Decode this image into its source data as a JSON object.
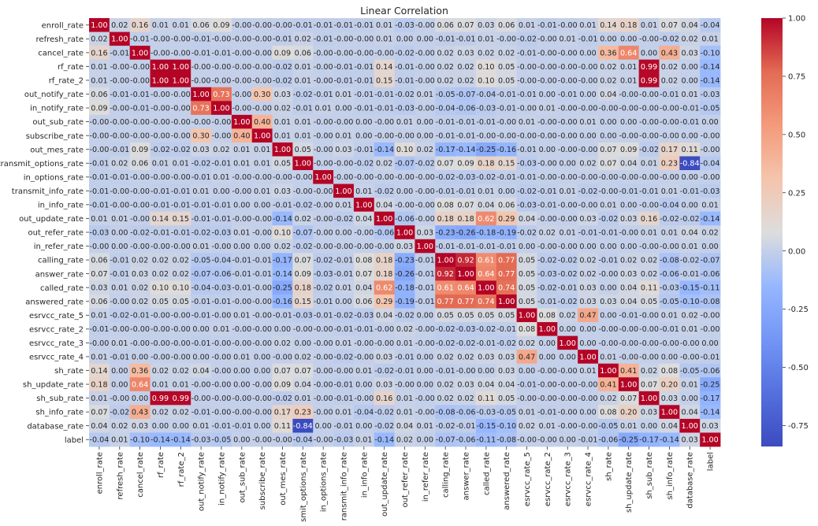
{
  "chart_data": {
    "type": "heatmap",
    "title": "Linear Correlation",
    "xlabel": "",
    "ylabel": "",
    "colormap": "coolwarm",
    "vmin": -0.84,
    "vmax": 1.0,
    "colorbar_ticks": [
      1.0,
      0.75,
      0.5,
      0.25,
      0.0,
      -0.25,
      -0.5,
      -0.75
    ],
    "colorbar_tick_labels": [
      "1.00",
      "0.75",
      "0.50",
      "0.25",
      "0.00",
      "-0.25",
      "-0.50",
      "-0.75"
    ],
    "labels": [
      "enroll_rate",
      "refresh_rate",
      "cancel_rate",
      "rf_rate",
      "rf_rate_2",
      "out_notify_rate",
      "in_notify_rate",
      "out_sub_rate",
      "subscribe_rate",
      "out_mes_rate",
      "transmit_options_rate",
      "in_options_rate",
      "transmit_info_rate",
      "in_info_rate",
      "out_update_rate",
      "out_refer_rate",
      "in_refer_rate",
      "calling_rate",
      "answer_rate",
      "called_rate",
      "answered_rate",
      "esrvcc_rate_5",
      "esrvcc_rate_2",
      "esrvcc_rate_3",
      "esrvcc_rate_4",
      "sh_rate",
      "sh_update_rate",
      "sh_sub_rate",
      "sh_info_rate",
      "database_rate",
      "label"
    ],
    "x_tick_labels": [
      "enroll_rate",
      "refresh_rate",
      "cancel_rate",
      "rf_rate",
      "rf_rate_2",
      "out_notify_rate",
      "in_notify_rate",
      "out_sub_rate",
      "subscribe_rate",
      "out_mes_rate",
      "nsmit_options_rate",
      "in_options_rate",
      "ransmit_info_rate",
      "in_info_rate",
      "out_update_rate",
      "out_refer_rate",
      "in_refer_rate",
      "calling_rate",
      "answer_rate",
      "called_rate",
      "answered_rate",
      "esrvcc_rate_5",
      "esrvcc_rate_2",
      "esrvcc_rate_3",
      "esrvcc_rate_4",
      "sh_rate",
      "sh_update_rate",
      "sh_sub_rate",
      "sh_info_rate",
      "database_rate",
      "label"
    ],
    "y_tick_labels": [
      "enroll_rate",
      "refresh_rate",
      "cancel_rate",
      "rf_rate",
      "rf_rate_2",
      "out_notify_rate",
      "in_notify_rate",
      "out_sub_rate",
      "subscribe_rate",
      "out_mes_rate",
      "transmit_options_rate",
      "in_options_rate",
      "transmit_info_rate",
      "in_info_rate",
      "out_update_rate",
      "out_refer_rate",
      "in_refer_rate",
      "calling_rate",
      "answer_rate",
      "called_rate",
      "answered_rate",
      "esrvcc_rate_5",
      "esrvcc_rate_2",
      "esrvcc_rate_3",
      "esrvcc_rate_4",
      "sh_rate",
      "sh_update_rate",
      "sh_sub_rate",
      "sh_info_rate",
      "database_rate",
      "label"
    ],
    "matrix": [
      [
        "1.00",
        "0.02",
        "0.16",
        "0.01",
        "0.01",
        "0.06",
        "0.09",
        "-0.00",
        "-0.00",
        "-0.00",
        "-0.01",
        "-0.01",
        "-0.01",
        "-0.01",
        "0.01",
        "-0.03",
        "-0.00",
        "0.06",
        "0.07",
        "0.03",
        "0.06",
        "0.01",
        "-0.01",
        "-0.00",
        "0.01",
        "0.14",
        "0.18",
        "0.01",
        "0.07",
        "0.04",
        "-0.04"
      ],
      [
        "0.02",
        "1.00",
        "-0.01",
        "-0.00",
        "-0.00",
        "-0.01",
        "-0.00",
        "-0.00",
        "-0.00",
        "-0.01",
        "0.02",
        "-0.01",
        "-0.00",
        "-0.00",
        "0.01",
        "0.00",
        "0.00",
        "-0.01",
        "-0.01",
        "0.01",
        "-0.00",
        "-0.02",
        "-0.00",
        "0.01",
        "-0.01",
        "0.00",
        "0.00",
        "-0.00",
        "-0.02",
        "0.02",
        "0.01"
      ],
      [
        "0.16",
        "-0.01",
        "1.00",
        "-0.00",
        "-0.00",
        "-0.01",
        "-0.01",
        "-0.00",
        "-0.00",
        "0.09",
        "0.06",
        "-0.00",
        "-0.00",
        "-0.00",
        "-0.00",
        "-0.02",
        "-0.00",
        "0.02",
        "0.03",
        "0.02",
        "0.02",
        "-0.01",
        "-0.00",
        "-0.00",
        "0.00",
        "0.36",
        "0.64",
        "0.00",
        "0.43",
        "0.03",
        "-0.10"
      ],
      [
        "0.01",
        "-0.00",
        "-0.00",
        "1.00",
        "1.00",
        "-0.00",
        "-0.00",
        "-0.00",
        "-0.00",
        "-0.02",
        "0.01",
        "-0.00",
        "-0.01",
        "-0.01",
        "0.14",
        "-0.01",
        "-0.00",
        "0.02",
        "0.02",
        "0.10",
        "0.05",
        "-0.00",
        "-0.00",
        "-0.00",
        "-0.00",
        "0.02",
        "0.01",
        "0.99",
        "0.02",
        "0.00",
        "-0.14"
      ],
      [
        "0.01",
        "-0.00",
        "-0.00",
        "1.00",
        "1.00",
        "-0.00",
        "-0.00",
        "-0.00",
        "-0.00",
        "-0.02",
        "0.01",
        "-0.00",
        "-0.01",
        "-0.01",
        "0.15",
        "-0.01",
        "-0.00",
        "0.02",
        "0.02",
        "0.10",
        "0.05",
        "-0.00",
        "-0.00",
        "-0.00",
        "-0.00",
        "0.02",
        "0.01",
        "0.99",
        "0.02",
        "0.00",
        "-0.14"
      ],
      [
        "0.06",
        "-0.01",
        "-0.01",
        "-0.00",
        "-0.00",
        "1.00",
        "0.73",
        "-0.00",
        "0.30",
        "0.03",
        "-0.02",
        "-0.01",
        "0.01",
        "-0.01",
        "-0.01",
        "-0.02",
        "0.01",
        "-0.05",
        "-0.07",
        "-0.04",
        "-0.01",
        "-0.01",
        "0.00",
        "-0.01",
        "0.00",
        "0.04",
        "-0.00",
        "-0.00",
        "-0.01",
        "0.01",
        "-0.03"
      ],
      [
        "0.09",
        "-0.00",
        "-0.01",
        "-0.00",
        "-0.00",
        "0.73",
        "1.00",
        "-0.00",
        "-0.00",
        "0.02",
        "-0.01",
        "0.01",
        "0.00",
        "-0.01",
        "-0.01",
        "-0.03",
        "-0.00",
        "-0.04",
        "-0.06",
        "-0.03",
        "-0.01",
        "-0.00",
        "0.01",
        "-0.00",
        "-0.00",
        "-0.00",
        "-0.00",
        "-0.00",
        "-0.00",
        "-0.01",
        "-0.05"
      ],
      [
        "-0.00",
        "-0.00",
        "-0.00",
        "-0.00",
        "-0.00",
        "-0.00",
        "-0.00",
        "1.00",
        "0.40",
        "0.01",
        "0.01",
        "-0.00",
        "-0.00",
        "0.00",
        "-0.00",
        "0.01",
        "0.00",
        "-0.01",
        "-0.01",
        "-0.01",
        "-0.00",
        "0.01",
        "-0.00",
        "-0.00",
        "0.01",
        "0.00",
        "0.00",
        "-0.00",
        "-0.00",
        "-0.01",
        "0.00"
      ],
      [
        "-0.00",
        "-0.00",
        "-0.00",
        "-0.00",
        "-0.00",
        "0.30",
        "-0.00",
        "0.40",
        "1.00",
        "0.01",
        "0.01",
        "-0.00",
        "0.01",
        "0.00",
        "-0.00",
        "-0.00",
        "0.00",
        "-0.01",
        "-0.01",
        "-0.00",
        "-0.00",
        "-0.00",
        "-0.00",
        "-0.00",
        "0.00",
        "0.00",
        "-0.00",
        "-0.00",
        "-0.00",
        "0.00",
        "-0.00"
      ],
      [
        "-0.00",
        "-0.01",
        "0.09",
        "-0.02",
        "-0.02",
        "0.03",
        "0.02",
        "0.01",
        "0.01",
        "1.00",
        "0.05",
        "-0.00",
        "0.03",
        "-0.01",
        "-0.14",
        "0.10",
        "0.02",
        "-0.17",
        "-0.14",
        "-0.25",
        "-0.16",
        "-0.01",
        "0.00",
        "-0.00",
        "-0.00",
        "0.07",
        "0.09",
        "-0.02",
        "0.17",
        "0.11",
        "-0.00"
      ],
      [
        "-0.01",
        "0.02",
        "0.06",
        "0.01",
        "0.01",
        "-0.02",
        "-0.01",
        "0.01",
        "0.01",
        "0.05",
        "1.00",
        "-0.00",
        "-0.00",
        "-0.02",
        "0.02",
        "-0.07",
        "-0.02",
        "0.07",
        "0.09",
        "0.18",
        "0.15",
        "-0.03",
        "-0.00",
        "0.00",
        "0.02",
        "0.07",
        "0.04",
        "0.01",
        "0.23",
        "-0.84",
        "-0.04"
      ],
      [
        "-0.01",
        "-0.01",
        "-0.00",
        "-0.00",
        "-0.00",
        "-0.01",
        "0.01",
        "-0.00",
        "-0.00",
        "-0.00",
        "-0.00",
        "1.00",
        "-0.00",
        "-0.00",
        "-0.00",
        "-0.00",
        "-0.00",
        "-0.02",
        "-0.03",
        "-0.02",
        "-0.01",
        "-0.01",
        "-0.00",
        "-0.00",
        "-0.00",
        "-0.00",
        "-0.00",
        "-0.00",
        "-0.00",
        "0.00",
        "-0.00"
      ],
      [
        "-0.01",
        "-0.00",
        "-0.00",
        "-0.01",
        "-0.01",
        "0.01",
        "0.00",
        "-0.00",
        "0.01",
        "0.03",
        "-0.00",
        "-0.00",
        "1.00",
        "0.01",
        "-0.02",
        "0.00",
        "-0.00",
        "-0.01",
        "-0.01",
        "0.01",
        "0.00",
        "-0.02",
        "-0.01",
        "0.01",
        "-0.02",
        "-0.00",
        "-0.01",
        "-0.01",
        "0.01",
        "-0.01",
        "-0.03"
      ],
      [
        "-0.01",
        "-0.00",
        "-0.00",
        "-0.01",
        "-0.01",
        "-0.01",
        "-0.01",
        "0.00",
        "0.00",
        "-0.01",
        "-0.02",
        "-0.00",
        "0.01",
        "1.00",
        "0.04",
        "-0.00",
        "-0.00",
        "0.08",
        "0.07",
        "0.04",
        "0.06",
        "-0.03",
        "-0.01",
        "-0.00",
        "-0.00",
        "0.01",
        "0.00",
        "-0.00",
        "-0.04",
        "0.00",
        "0.01"
      ],
      [
        "0.01",
        "0.01",
        "-0.00",
        "0.14",
        "0.15",
        "-0.01",
        "-0.01",
        "-0.00",
        "-0.00",
        "-0.14",
        "0.02",
        "-0.00",
        "-0.02",
        "0.04",
        "1.00",
        "-0.06",
        "-0.00",
        "0.18",
        "0.18",
        "0.62",
        "0.29",
        "0.04",
        "-0.00",
        "-0.00",
        "0.03",
        "-0.02",
        "0.03",
        "0.16",
        "-0.02",
        "-0.02",
        "-0.14"
      ],
      [
        "-0.03",
        "0.00",
        "-0.02",
        "-0.01",
        "-0.01",
        "-0.02",
        "-0.03",
        "0.01",
        "-0.00",
        "0.10",
        "-0.07",
        "-0.00",
        "0.00",
        "-0.00",
        "-0.06",
        "1.00",
        "0.03",
        "-0.23",
        "-0.26",
        "-0.18",
        "-0.19",
        "-0.02",
        "0.02",
        "0.01",
        "-0.01",
        "-0.01",
        "-0.00",
        "0.01",
        "0.01",
        "0.04",
        "0.02"
      ],
      [
        "-0.00",
        "0.00",
        "-0.00",
        "-0.00",
        "-0.00",
        "0.01",
        "-0.00",
        "0.00",
        "0.00",
        "0.02",
        "-0.02",
        "-0.00",
        "-0.00",
        "-0.00",
        "-0.00",
        "0.03",
        "1.00",
        "-0.01",
        "-0.01",
        "-0.01",
        "-0.01",
        "0.00",
        "-0.00",
        "-0.00",
        "0.00",
        "0.00",
        "0.00",
        "-0.00",
        "-0.00",
        "0.01",
        "0.00"
      ],
      [
        "0.06",
        "-0.01",
        "0.02",
        "0.02",
        "0.02",
        "-0.05",
        "-0.04",
        "-0.01",
        "-0.01",
        "-0.17",
        "0.07",
        "-0.02",
        "-0.01",
        "0.08",
        "0.18",
        "-0.23",
        "-0.01",
        "1.00",
        "0.92",
        "0.61",
        "0.77",
        "0.05",
        "-0.02",
        "-0.02",
        "0.02",
        "-0.01",
        "0.02",
        "0.02",
        "-0.08",
        "-0.02",
        "-0.07"
      ],
      [
        "0.07",
        "-0.01",
        "0.03",
        "0.02",
        "0.02",
        "-0.07",
        "-0.06",
        "-0.01",
        "-0.01",
        "-0.14",
        "0.09",
        "-0.03",
        "-0.01",
        "0.07",
        "0.18",
        "-0.26",
        "-0.01",
        "0.92",
        "1.00",
        "0.64",
        "0.77",
        "0.05",
        "-0.03",
        "-0.02",
        "0.02",
        "-0.00",
        "0.03",
        "0.02",
        "-0.06",
        "-0.01",
        "-0.06"
      ],
      [
        "0.03",
        "0.01",
        "0.02",
        "0.10",
        "0.10",
        "-0.04",
        "-0.03",
        "-0.01",
        "-0.00",
        "-0.25",
        "0.18",
        "-0.02",
        "0.01",
        "0.04",
        "0.62",
        "-0.18",
        "-0.01",
        "0.61",
        "0.64",
        "1.00",
        "0.74",
        "0.05",
        "-0.02",
        "-0.01",
        "0.03",
        "0.00",
        "0.04",
        "0.11",
        "-0.03",
        "-0.15",
        "-0.11"
      ],
      [
        "0.06",
        "-0.00",
        "0.02",
        "0.05",
        "0.05",
        "-0.01",
        "-0.01",
        "-0.00",
        "-0.00",
        "-0.16",
        "0.15",
        "-0.01",
        "0.00",
        "0.06",
        "0.29",
        "-0.19",
        "-0.01",
        "0.77",
        "0.77",
        "0.74",
        "1.00",
        "0.05",
        "-0.01",
        "-0.02",
        "0.03",
        "0.03",
        "0.04",
        "0.05",
        "-0.05",
        "-0.10",
        "-0.08"
      ],
      [
        "0.01",
        "-0.02",
        "-0.01",
        "-0.00",
        "-0.00",
        "-0.01",
        "-0.00",
        "0.01",
        "-0.00",
        "-0.01",
        "-0.03",
        "-0.01",
        "-0.02",
        "-0.03",
        "0.04",
        "-0.02",
        "0.00",
        "0.05",
        "0.05",
        "0.05",
        "0.05",
        "1.00",
        "0.08",
        "0.02",
        "0.47",
        "0.00",
        "-0.01",
        "-0.00",
        "0.01",
        "0.02",
        "-0.00"
      ],
      [
        "-0.01",
        "-0.00",
        "-0.00",
        "-0.00",
        "-0.00",
        "0.00",
        "0.01",
        "-0.00",
        "-0.00",
        "0.00",
        "-0.00",
        "-0.00",
        "-0.01",
        "-0.01",
        "-0.00",
        "0.02",
        "-0.00",
        "-0.02",
        "-0.03",
        "-0.02",
        "-0.01",
        "0.08",
        "1.00",
        "0.00",
        "0.00",
        "-0.00",
        "-0.00",
        "-0.00",
        "-0.01",
        "0.01",
        "-0.00"
      ],
      [
        "-0.00",
        "0.01",
        "-0.00",
        "-0.00",
        "-0.00",
        "-0.01",
        "-0.00",
        "-0.00",
        "-0.00",
        "0.02",
        "0.00",
        "-0.00",
        "0.01",
        "-0.00",
        "-0.00",
        "0.01",
        "-0.00",
        "-0.02",
        "-0.02",
        "-0.01",
        "-0.02",
        "0.02",
        "0.00",
        "1.00",
        "0.00",
        "-0.00",
        "-0.00",
        "-0.00",
        "-0.00",
        "-0.00",
        "0.00"
      ],
      [
        "0.01",
        "-0.01",
        "0.00",
        "-0.00",
        "-0.00",
        "0.00",
        "-0.00",
        "0.01",
        "0.00",
        "-0.00",
        "0.02",
        "-0.00",
        "-0.02",
        "-0.00",
        "0.03",
        "-0.01",
        "0.00",
        "0.02",
        "0.02",
        "0.03",
        "0.03",
        "0.47",
        "0.00",
        "0.00",
        "1.00",
        "0.01",
        "-0.00",
        "-0.00",
        "0.00",
        "-0.00",
        "-0.01"
      ],
      [
        "0.14",
        "0.00",
        "0.36",
        "0.02",
        "0.02",
        "0.04",
        "-0.00",
        "0.00",
        "0.00",
        "0.07",
        "0.07",
        "-0.00",
        "-0.00",
        "0.01",
        "-0.02",
        "-0.01",
        "0.00",
        "-0.01",
        "-0.00",
        "0.00",
        "0.03",
        "0.00",
        "-0.00",
        "-0.00",
        "0.01",
        "1.00",
        "0.41",
        "0.02",
        "0.08",
        "-0.05",
        "-0.06"
      ],
      [
        "0.18",
        "0.00",
        "0.64",
        "0.01",
        "0.01",
        "-0.00",
        "-0.00",
        "0.00",
        "-0.00",
        "0.09",
        "0.04",
        "-0.00",
        "-0.01",
        "0.00",
        "0.03",
        "-0.00",
        "0.00",
        "0.02",
        "0.03",
        "0.04",
        "0.04",
        "-0.01",
        "-0.00",
        "-0.00",
        "-0.00",
        "0.41",
        "1.00",
        "0.07",
        "0.20",
        "0.01",
        "-0.25"
      ],
      [
        "0.01",
        "-0.00",
        "0.00",
        "0.99",
        "0.99",
        "-0.00",
        "-0.00",
        "-0.00",
        "-0.00",
        "-0.02",
        "0.01",
        "-0.00",
        "-0.01",
        "-0.00",
        "0.16",
        "0.01",
        "-0.00",
        "0.02",
        "0.02",
        "0.11",
        "0.05",
        "-0.00",
        "-0.00",
        "-0.00",
        "-0.00",
        "0.02",
        "0.07",
        "1.00",
        "0.03",
        "0.00",
        "-0.17"
      ],
      [
        "0.07",
        "-0.02",
        "0.43",
        "0.02",
        "0.02",
        "-0.01",
        "-0.00",
        "-0.00",
        "-0.00",
        "0.17",
        "0.23",
        "-0.00",
        "0.01",
        "-0.04",
        "-0.02",
        "0.01",
        "-0.00",
        "-0.08",
        "-0.06",
        "-0.03",
        "-0.05",
        "0.01",
        "-0.01",
        "-0.00",
        "0.00",
        "0.08",
        "0.20",
        "0.03",
        "1.00",
        "0.04",
        "-0.14"
      ],
      [
        "0.04",
        "0.02",
        "0.03",
        "0.00",
        "0.00",
        "0.01",
        "-0.01",
        "-0.01",
        "0.00",
        "0.11",
        "-0.84",
        "0.00",
        "-0.01",
        "0.00",
        "-0.02",
        "0.04",
        "0.01",
        "-0.02",
        "-0.01",
        "-0.15",
        "-0.10",
        "0.02",
        "0.01",
        "-0.00",
        "-0.00",
        "-0.05",
        "0.01",
        "0.00",
        "0.04",
        "1.00",
        "0.03"
      ],
      [
        "-0.04",
        "0.01",
        "-0.10",
        "-0.14",
        "-0.14",
        "-0.03",
        "-0.05",
        "0.00",
        "-0.00",
        "-0.00",
        "-0.04",
        "-0.00",
        "-0.03",
        "0.01",
        "-0.14",
        "0.02",
        "0.00",
        "-0.07",
        "-0.06",
        "-0.11",
        "-0.08",
        "-0.00",
        "-0.00",
        "0.00",
        "-0.01",
        "-0.06",
        "-0.25",
        "-0.17",
        "-0.14",
        "0.03",
        "1.00"
      ]
    ]
  }
}
